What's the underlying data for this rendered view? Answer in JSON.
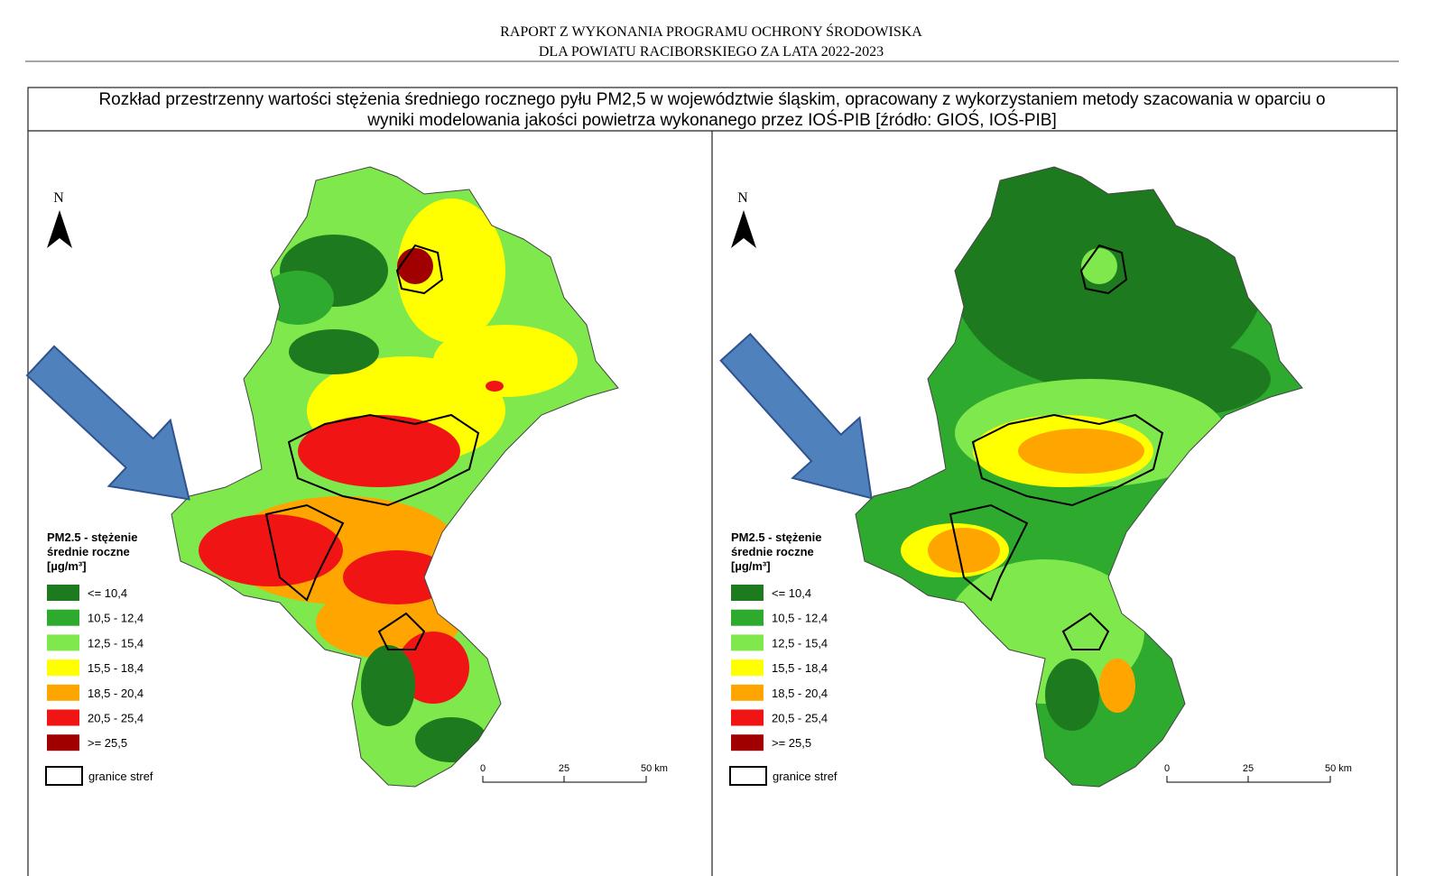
{
  "header": {
    "lines": [
      "RAPORT Z WYKONANIA PROGRAMU OCHRONY ŚRODOWISKA",
      "DLA POWIATU RACIBORSKIEGO ZA LATA 2022-2023"
    ]
  },
  "caption": [
    "Rozkład przestrzenny wartości stężenia średniego rocznego pyłu PM2,5 w województwie śląskim, opracowany z wykorzystaniem metody szacowania w oparciu o",
    "wyniki modelowania jakości powietrza wykonanego przez IOŚ-PIB [źródło: GIOŚ, IOŚ-PIB]"
  ],
  "maps": [
    {
      "north": "N",
      "legend_title": [
        "PM2.5 - stężenie",
        "średnie roczne",
        "[µg/m³]"
      ],
      "legend": [
        {
          "label": "<= 10,4",
          "color": "#1e7a1e"
        },
        {
          "label": "10,5 - 12,4",
          "color": "#2eaa2e"
        },
        {
          "label": "12,5 - 15,4",
          "color": "#7ee84c"
        },
        {
          "label": "15,5 - 18,4",
          "color": "#ffff00"
        },
        {
          "label": "18,5 - 20,4",
          "color": "#ffa500"
        },
        {
          "label": "20,5 - 25,4",
          "color": "#f01414"
        },
        {
          "label": ">= 25,5",
          "color": "#a00000"
        }
      ],
      "boundary": "granice stref",
      "scale": [
        "0",
        "25",
        "50 km"
      ]
    },
    {
      "north": "N",
      "legend_title": [
        "PM2.5 - stężenie",
        "średnie roczne",
        "[µg/m³]"
      ],
      "legend": [
        {
          "label": "<= 10,4",
          "color": "#1e7a1e"
        },
        {
          "label": "10,5 - 12,4",
          "color": "#2eaa2e"
        },
        {
          "label": "12,5 - 15,4",
          "color": "#7ee84c"
        },
        {
          "label": "15,5 - 18,4",
          "color": "#ffff00"
        },
        {
          "label": "18,5 - 20,4",
          "color": "#ffa500"
        },
        {
          "label": "20,5 - 25,4",
          "color": "#f01414"
        },
        {
          "label": ">= 25,5",
          "color": "#a00000"
        }
      ],
      "boundary": "granice stref",
      "scale": [
        "0",
        "25",
        "50 km"
      ]
    }
  ]
}
